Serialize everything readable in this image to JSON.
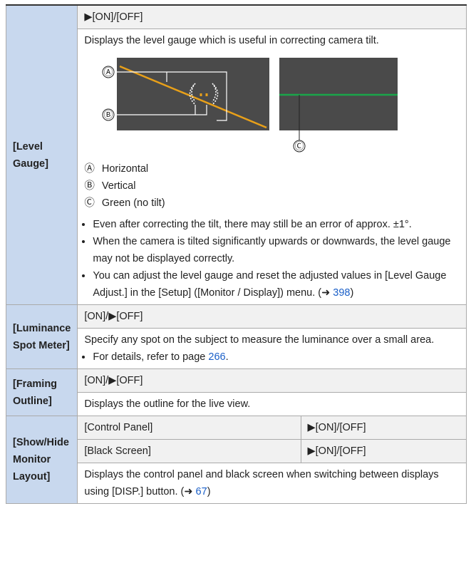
{
  "rows": [
    {
      "label": "[Level Gauge]",
      "setting": "▶[ON]/[OFF]",
      "description": "Displays the level gauge which is useful in correcting camera tilt.",
      "figure": {
        "callouts": [
          "Ⓐ",
          "Ⓑ",
          "Ⓒ"
        ]
      },
      "legend": [
        {
          "mark": "Ⓐ",
          "text": "Horizontal"
        },
        {
          "mark": "Ⓑ",
          "text": "Vertical"
        },
        {
          "mark": "Ⓒ",
          "text": "Green (no tilt)"
        }
      ],
      "notes": [
        {
          "text": "Even after correcting the tilt, there may still be an error of approx. ±1°."
        },
        {
          "text": "When the camera is tilted significantly upwards or downwards, the level gauge may not be displayed correctly."
        },
        {
          "text": "You can adjust the level gauge and reset the adjusted values in [Level Gauge Adjust.] in the [Setup] ([Monitor / Display]) menu. (➜ ",
          "link": "398",
          "after": ")"
        }
      ]
    },
    {
      "label": "[Luminance Spot Meter]",
      "setting": "[ON]/▶[OFF]",
      "description": "Specify any spot on the subject to measure the luminance over a small area.",
      "notes": [
        {
          "text": "For details, refer to page ",
          "link": "266",
          "after": "."
        }
      ]
    },
    {
      "label": "[Framing Outline]",
      "setting": "[ON]/▶[OFF]",
      "description": "Displays the outline for the live view."
    },
    {
      "label": "[Show/Hide Monitor Layout]",
      "settings": [
        {
          "name": "[Control Panel]",
          "value": "▶[ON]/[OFF]"
        },
        {
          "name": "[Black Screen]",
          "value": "▶[ON]/[OFF]"
        }
      ],
      "description": "Displays the control panel and black screen when switching between displays using [DISP.] button. (➜ ",
      "link": "67",
      "after": ")"
    }
  ]
}
